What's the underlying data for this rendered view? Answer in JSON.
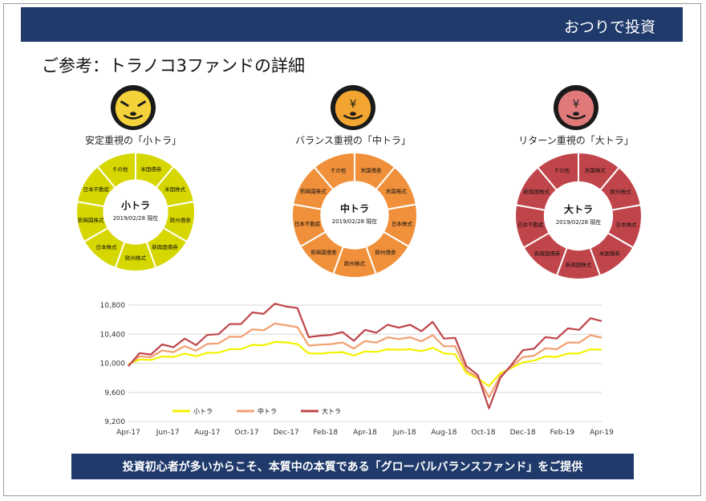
{
  "header": {
    "title": "おつりで投資"
  },
  "page_title": "ご参考：トラノコ3ファンドの詳細",
  "banner": {
    "text": "投資初心者が多いからこそ、本質中の本質である「グローバルバランスファンド」をご提供"
  },
  "funds": [
    {
      "label": "安定重視の「小トラ」",
      "center_name": "小トラ",
      "center_date": "2019/02/28 現在",
      "color": "#d6d600",
      "face_color": "#f3d23a",
      "segment_labels": [
        "米国債券",
        "米国株式",
        "欧州債券",
        "新興国債券",
        "欧州株式",
        "日本株式",
        "新興国株式",
        "日本不動産",
        "その他"
      ]
    },
    {
      "label": "バランス重視の「中トラ」",
      "center_name": "中トラ",
      "center_date": "2019/02/28 現在",
      "color": "#f0903a",
      "face_color": "#f2a530",
      "segment_labels": [
        "米国債券",
        "米国株式",
        "日本株式",
        "欧州債券",
        "欧州株式",
        "新興国債券",
        "日本不動産",
        "新興国株式",
        "その他"
      ]
    },
    {
      "label": "リターン重視の「大トラ」",
      "center_name": "大トラ",
      "center_date": "2019/02/28 現在",
      "color": "#c0454a",
      "face_color": "#e07a7a",
      "segment_labels": [
        "米国株式",
        "欧州株式",
        "日本株式",
        "米国債券",
        "新興国株式",
        "新興国債券",
        "日本不動産",
        "新興国株式",
        "その他"
      ]
    }
  ],
  "chart_data": {
    "type": "line",
    "x_tick_labels": [
      "Apr-17",
      "Jun-17",
      "Aug-17",
      "Oct-17",
      "Dec-17",
      "Feb-18",
      "Apr-18",
      "Jun-18",
      "Aug-18",
      "Oct-18",
      "Dec-18",
      "Feb-19",
      "Apr-19"
    ],
    "y_tick_labels": [
      "9,200",
      "9,600",
      "10,000",
      "10,400",
      "10,800"
    ],
    "ylim": [
      9200,
      10800
    ],
    "grid": true,
    "legend_position": "bottom-left",
    "series": [
      {
        "name": "小トラ",
        "color": "#f2f200",
        "values": [
          10000,
          10040,
          10060,
          10080,
          10100,
          10120,
          10110,
          10130,
          10160,
          10180,
          10210,
          10240,
          10260,
          10280,
          10300,
          10250,
          10150,
          10120,
          10160,
          10140,
          10120,
          10150,
          10170,
          10180,
          10200,
          10180,
          10180,
          10200,
          10150,
          10110,
          9880,
          9780,
          9700,
          9850,
          9950,
          10000,
          10050,
          10080,
          10100,
          10120,
          10150,
          10180,
          10200
        ]
      },
      {
        "name": "中トラ",
        "color": "#f0a070",
        "values": [
          10000,
          10070,
          10110,
          10150,
          10180,
          10210,
          10200,
          10240,
          10300,
          10340,
          10390,
          10440,
          10480,
          10520,
          10550,
          10470,
          10270,
          10230,
          10290,
          10260,
          10230,
          10280,
          10310,
          10330,
          10360,
          10330,
          10330,
          10360,
          10260,
          10210,
          9930,
          9780,
          9560,
          9800,
          9980,
          10060,
          10130,
          10180,
          10220,
          10260,
          10310,
          10360,
          10380
        ]
      },
      {
        "name": "大トラ",
        "color": "#c0454a",
        "values": [
          10000,
          10100,
          10160,
          10220,
          10260,
          10300,
          10290,
          10350,
          10440,
          10500,
          10580,
          10660,
          10720,
          10780,
          10820,
          10720,
          10400,
          10340,
          10430,
          10390,
          10350,
          10420,
          10460,
          10490,
          10530,
          10490,
          10480,
          10530,
          10380,
          10310,
          10000,
          9800,
          9420,
          9760,
          10020,
          10140,
          10240,
          10320,
          10380,
          10440,
          10500,
          10580,
          10620
        ]
      }
    ]
  }
}
